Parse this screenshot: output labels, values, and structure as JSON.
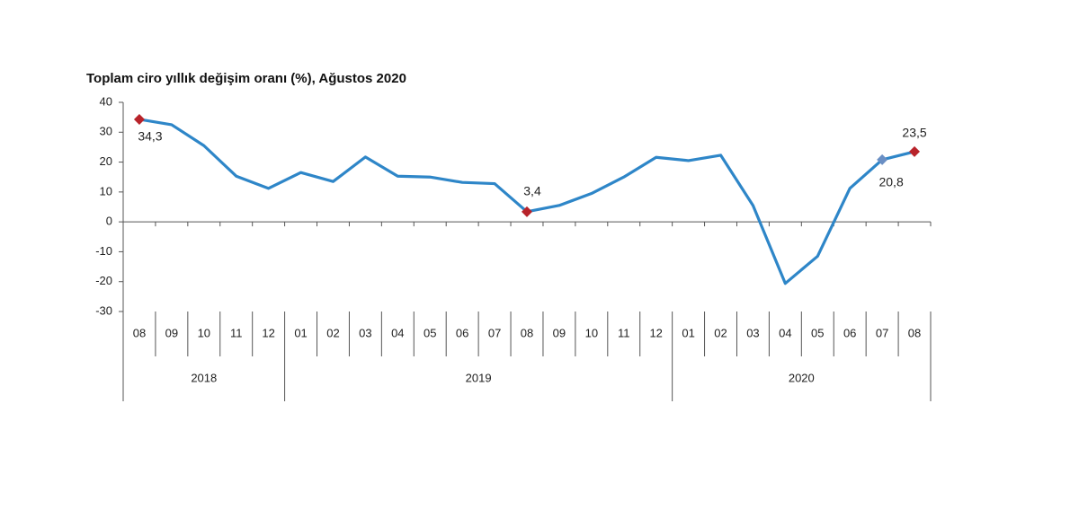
{
  "chart_data": {
    "type": "line",
    "title": "Toplam ciro yıllık değişim oranı (%), Ağustos 2020",
    "groups": [
      {
        "name": "2018",
        "categories": [
          "08",
          "09",
          "10",
          "11",
          "12"
        ]
      },
      {
        "name": "2019",
        "categories": [
          "01",
          "02",
          "03",
          "04",
          "05",
          "06",
          "07",
          "08",
          "09",
          "10",
          "11",
          "12"
        ]
      },
      {
        "name": "2020",
        "categories": [
          "01",
          "02",
          "03",
          "04",
          "05",
          "06",
          "07",
          "08"
        ]
      }
    ],
    "values": [
      34.3,
      32.5,
      25.5,
      15.3,
      11.2,
      16.5,
      13.5,
      21.7,
      15.3,
      15,
      13.2,
      12.8,
      3.4,
      5.5,
      9.5,
      15,
      21.6,
      20.5,
      22.3,
      5.5,
      -20.6,
      -11.5,
      11.2,
      20.8,
      23.5
    ],
    "value_labels": [
      "34,3",
      null,
      null,
      null,
      null,
      null,
      null,
      null,
      null,
      null,
      null,
      null,
      "3,4",
      null,
      null,
      null,
      null,
      null,
      null,
      null,
      null,
      null,
      null,
      "20,8",
      "23,5"
    ],
    "color": "#2e86c8",
    "marker_colors": [
      "#b8232a",
      null,
      null,
      null,
      null,
      null,
      null,
      null,
      null,
      null,
      null,
      null,
      "#b8232a",
      null,
      null,
      null,
      null,
      null,
      null,
      null,
      null,
      null,
      null,
      "#6a8fc4",
      "#b8232a"
    ],
    "ylim": [
      -30,
      40
    ],
    "yticks": [
      -30,
      -20,
      -10,
      0,
      10,
      20,
      30,
      40
    ]
  }
}
